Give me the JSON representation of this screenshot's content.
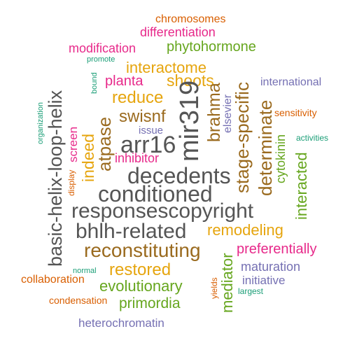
{
  "palette": {
    "gray": "#555555",
    "brown": "#9a6a1e",
    "gold": "#e6a50e",
    "orange": "#d95f02",
    "magenta": "#e7298a",
    "green": "#66a61e",
    "teal": "#1b9e77",
    "purple": "#7570b3"
  },
  "words": [
    {
      "text": "chromosomes",
      "color": "orange"
    },
    {
      "text": "differentiation",
      "color": "magenta"
    },
    {
      "text": "modification",
      "color": "magenta"
    },
    {
      "text": "phytohormone",
      "color": "green"
    },
    {
      "text": "promote",
      "color": "teal"
    },
    {
      "text": "interactome",
      "color": "gold"
    },
    {
      "text": "bound",
      "color": "teal"
    },
    {
      "text": "planta",
      "color": "magenta"
    },
    {
      "text": "shoots",
      "color": "gold"
    },
    {
      "text": "international",
      "color": "purple"
    },
    {
      "text": "reduce",
      "color": "gold"
    },
    {
      "text": "mir319",
      "color": "gray"
    },
    {
      "text": "brahma",
      "color": "brown"
    },
    {
      "text": "elsevier",
      "color": "purple"
    },
    {
      "text": "stage-specific",
      "color": "brown"
    },
    {
      "text": "organization",
      "color": "teal"
    },
    {
      "text": "basic-helix-loop-helix",
      "color": "gray"
    },
    {
      "text": "swisnf",
      "color": "brown"
    },
    {
      "text": "sensitivity",
      "color": "orange"
    },
    {
      "text": "screen",
      "color": "magenta"
    },
    {
      "text": "atpase",
      "color": "brown"
    },
    {
      "text": "issue",
      "color": "purple"
    },
    {
      "text": "determinate",
      "color": "brown"
    },
    {
      "text": "cytokinin",
      "color": "green"
    },
    {
      "text": "activities",
      "color": "teal"
    },
    {
      "text": "indeed",
      "color": "gold"
    },
    {
      "text": "arr16",
      "color": "gray"
    },
    {
      "text": "interacted",
      "color": "green"
    },
    {
      "text": "inhibitor",
      "color": "magenta"
    },
    {
      "text": "display",
      "color": "orange"
    },
    {
      "text": "decedents",
      "color": "gray"
    },
    {
      "text": "conditioned",
      "color": "gray"
    },
    {
      "text": "responsescopyright",
      "color": "gray"
    },
    {
      "text": "bhlh-related",
      "color": "gray"
    },
    {
      "text": "remodeling",
      "color": "gold"
    },
    {
      "text": "reconstituting",
      "color": "brown"
    },
    {
      "text": "preferentially",
      "color": "magenta"
    },
    {
      "text": "mediator",
      "color": "green"
    },
    {
      "text": "restored",
      "color": "gold"
    },
    {
      "text": "maturation",
      "color": "purple"
    },
    {
      "text": "normal",
      "color": "teal"
    },
    {
      "text": "collaboration",
      "color": "orange"
    },
    {
      "text": "evolutionary",
      "color": "green"
    },
    {
      "text": "initiative",
      "color": "purple"
    },
    {
      "text": "yields",
      "color": "orange"
    },
    {
      "text": "largest",
      "color": "teal"
    },
    {
      "text": "condensation",
      "color": "orange"
    },
    {
      "text": "primordia",
      "color": "green"
    },
    {
      "text": "heterochromatin",
      "color": "purple"
    }
  ]
}
